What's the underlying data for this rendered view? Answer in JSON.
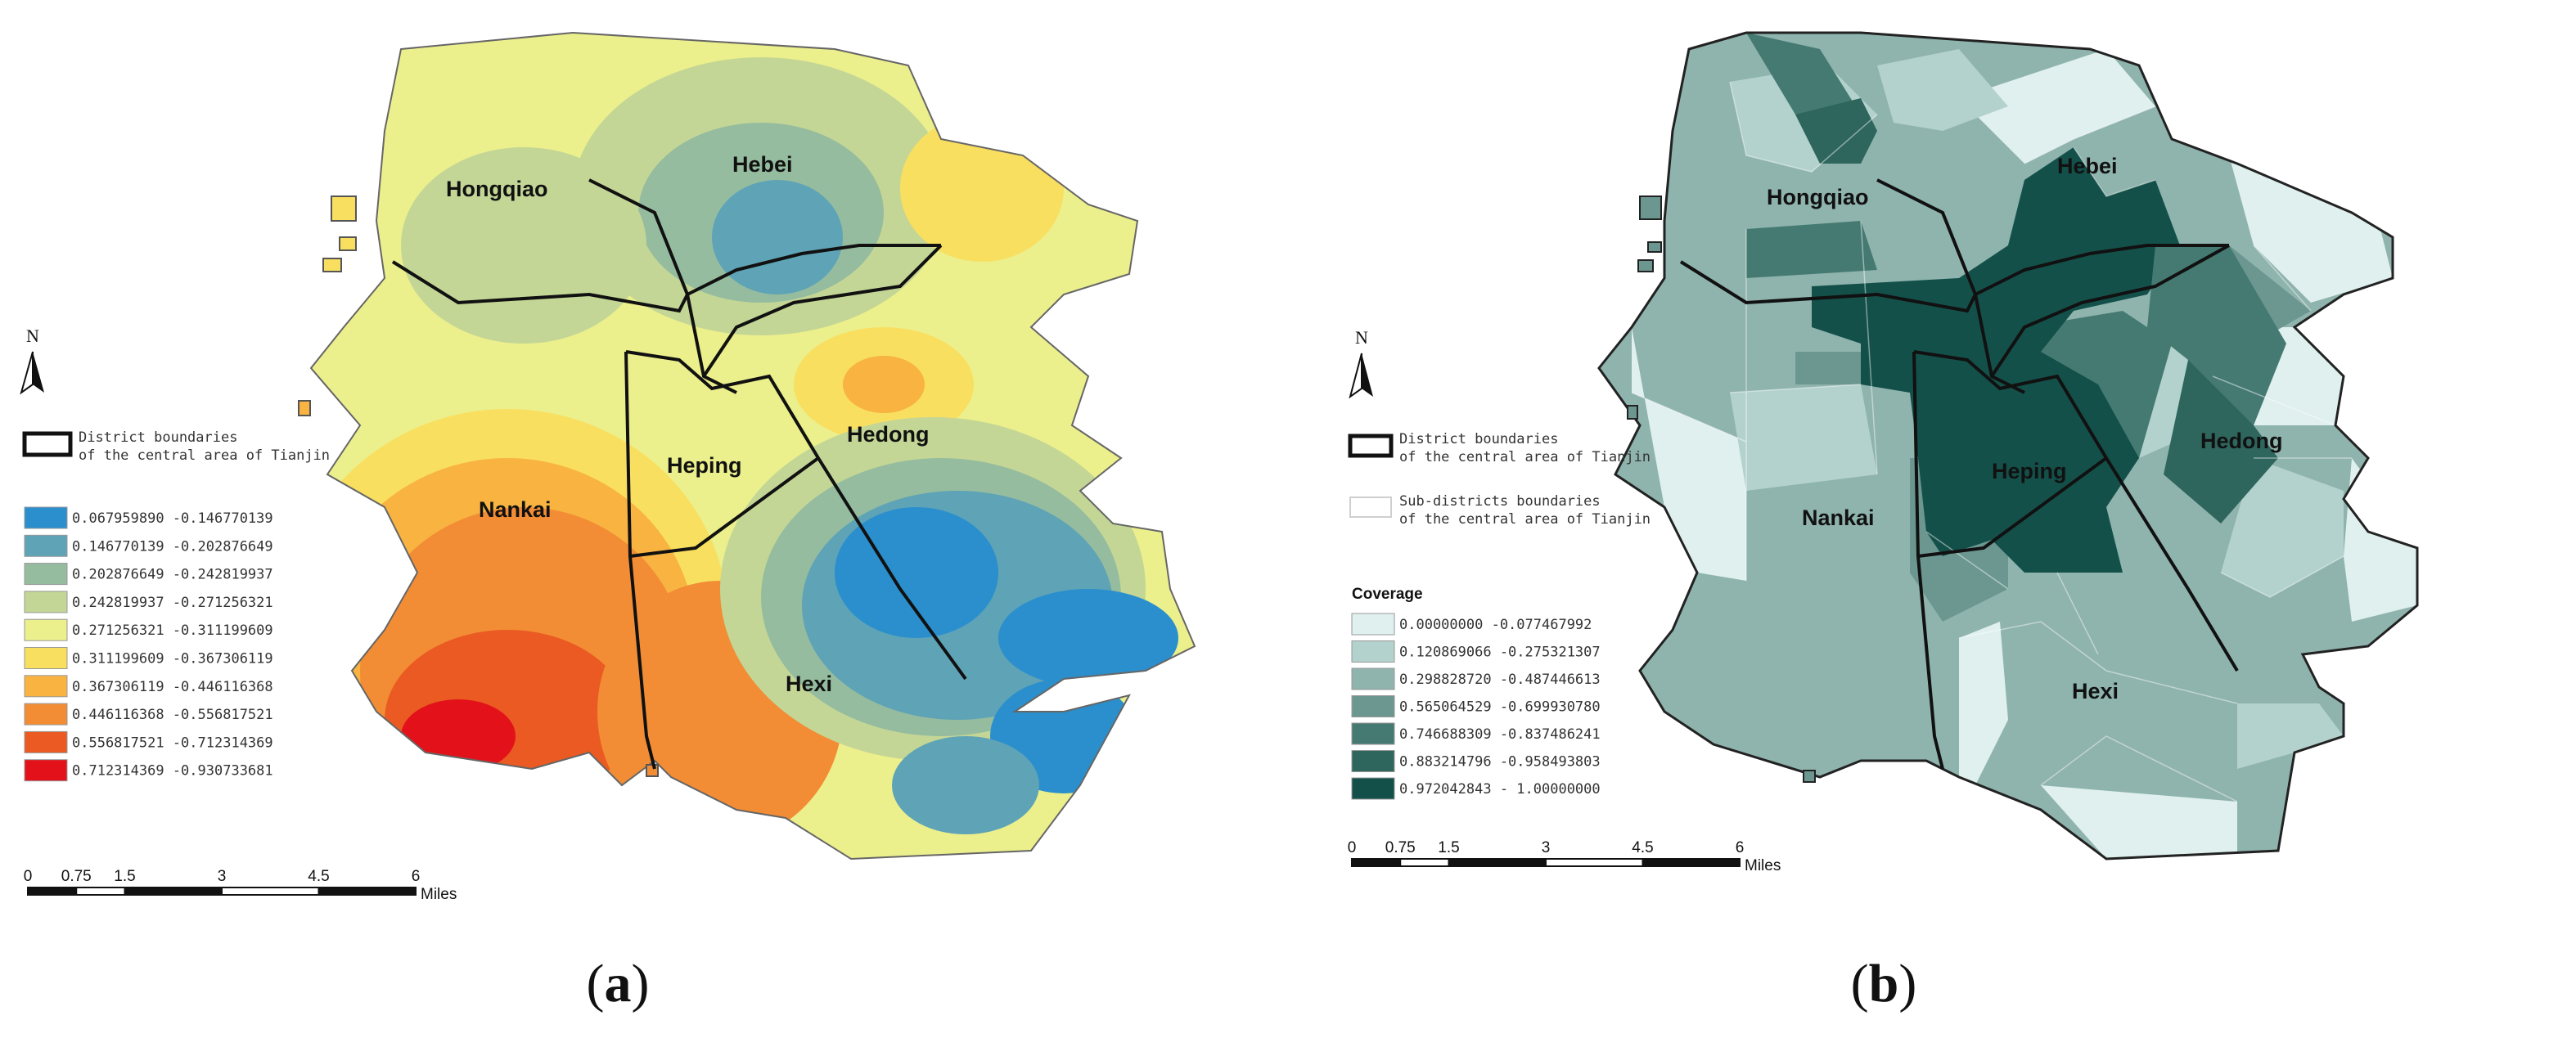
{
  "panel_a": {
    "caption_letter": "a",
    "north": "N",
    "districts": [
      "Hongqiao",
      "Hebei",
      "Hedong",
      "Heping",
      "Nankai",
      "Hexi"
    ],
    "boundary_legend": [
      "District boundaries",
      "of the central area of Tianjin"
    ],
    "classes": [
      {
        "label": "0.067959890 -0.146770139",
        "color": "#2b8fcd"
      },
      {
        "label": "0.146770139 -0.202876649",
        "color": "#5ea3b6"
      },
      {
        "label": "0.202876649 -0.242819937",
        "color": "#95bc9f"
      },
      {
        "label": "0.242819937 -0.271256321",
        "color": "#c3d696"
      },
      {
        "label": "0.271256321 -0.311199609",
        "color": "#ebef8c"
      },
      {
        "label": "0.311199609 -0.367306119",
        "color": "#f9df60"
      },
      {
        "label": "0.367306119 -0.446116368",
        "color": "#f8b341"
      },
      {
        "label": "0.446116368 -0.556817521",
        "color": "#f28d35"
      },
      {
        "label": "0.556817521 -0.712314369",
        "color": "#ea5a22"
      },
      {
        "label": "0.712314369 -0.930733681",
        "color": "#e3121a"
      }
    ],
    "scale_ticks": [
      "0",
      "0.75",
      "1.5",
      "3",
      "4.5",
      "6"
    ],
    "scale_unit": "Miles"
  },
  "panel_b": {
    "caption_letter": "b",
    "north": "N",
    "districts": [
      "Hongqiao",
      "Hebei",
      "Hedong",
      "Heping",
      "Nankai",
      "Hexi"
    ],
    "boundary_legend": [
      "District boundaries",
      "of the central area of Tianjin"
    ],
    "subdistrict_legend": [
      "Sub-districts boundaries",
      "of the central area of Tianjin"
    ],
    "legend_title": "Coverage",
    "classes": [
      {
        "label": "0.00000000 -0.077467992",
        "color": "#dff0ee"
      },
      {
        "label": "0.120869066 -0.275321307",
        "color": "#b3d2cd"
      },
      {
        "label": "0.298828720 -0.487446613",
        "color": "#8fb3ad"
      },
      {
        "label": "0.565064529 -0.699930780",
        "color": "#6b9790"
      },
      {
        "label": "0.746688309 -0.837486241",
        "color": "#457a72"
      },
      {
        "label": "0.883214796 -0.958493803",
        "color": "#2e655d"
      },
      {
        "label": "0.972042843 - 1.00000000",
        "color": "#14504a"
      }
    ],
    "scale_ticks": [
      "0",
      "0.75",
      "1.5",
      "3",
      "4.5",
      "6"
    ],
    "scale_unit": "Miles"
  }
}
